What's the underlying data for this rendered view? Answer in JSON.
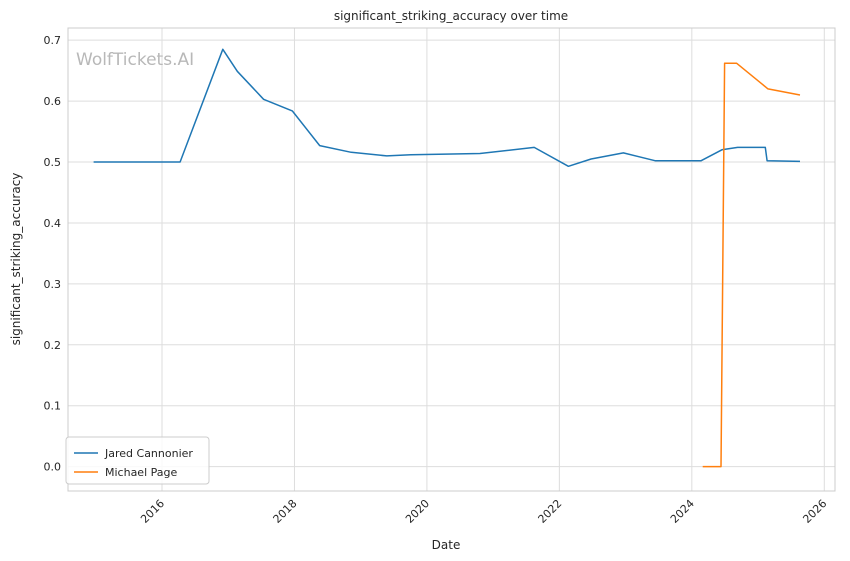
{
  "watermark": "WolfTickets.AI",
  "chart_data": {
    "type": "line",
    "title": "significant_striking_accuracy over time",
    "xlabel": "Date",
    "ylabel": "significant_striking_accuracy",
    "x_ticks": [
      "2016",
      "2018",
      "2020",
      "2022",
      "2024",
      "2026"
    ],
    "y_ticks": [
      "0.0",
      "0.1",
      "0.2",
      "0.3",
      "0.4",
      "0.5",
      "0.6",
      "0.7"
    ],
    "xlim": [
      "2014-08-01",
      "2026-03-01"
    ],
    "ylim": [
      -0.04,
      0.72
    ],
    "grid": true,
    "legend_position": "lower-left",
    "series": [
      {
        "name": "Jared Cannonier",
        "color": "#1f77b4",
        "points": [
          [
            "2014-12-20",
            0.5
          ],
          [
            "2016-04-10",
            0.5
          ],
          [
            "2016-12-02",
            0.685
          ],
          [
            "2017-02-20",
            0.649
          ],
          [
            "2017-07-15",
            0.603
          ],
          [
            "2017-12-20",
            0.584
          ],
          [
            "2018-05-20",
            0.527
          ],
          [
            "2018-11-10",
            0.516
          ],
          [
            "2019-05-25",
            0.51
          ],
          [
            "2019-10-05",
            0.512
          ],
          [
            "2020-10-20",
            0.514
          ],
          [
            "2021-08-15",
            0.524
          ],
          [
            "2022-02-20",
            0.493
          ],
          [
            "2022-06-25",
            0.505
          ],
          [
            "2022-12-20",
            0.515
          ],
          [
            "2023-06-15",
            0.502
          ],
          [
            "2024-02-20",
            0.502
          ],
          [
            "2024-06-15",
            0.52
          ],
          [
            "2024-09-10",
            0.524
          ],
          [
            "2025-02-10",
            0.524
          ],
          [
            "2025-02-20",
            0.502
          ],
          [
            "2025-08-20",
            0.501
          ]
        ]
      },
      {
        "name": "Michael Page",
        "color": "#ff7f0e",
        "points": [
          [
            "2024-03-01",
            0.0
          ],
          [
            "2024-06-10",
            0.0
          ],
          [
            "2024-06-30",
            0.662
          ],
          [
            "2024-09-05",
            0.662
          ],
          [
            "2025-02-25",
            0.62
          ],
          [
            "2025-08-20",
            0.61
          ]
        ]
      }
    ]
  }
}
